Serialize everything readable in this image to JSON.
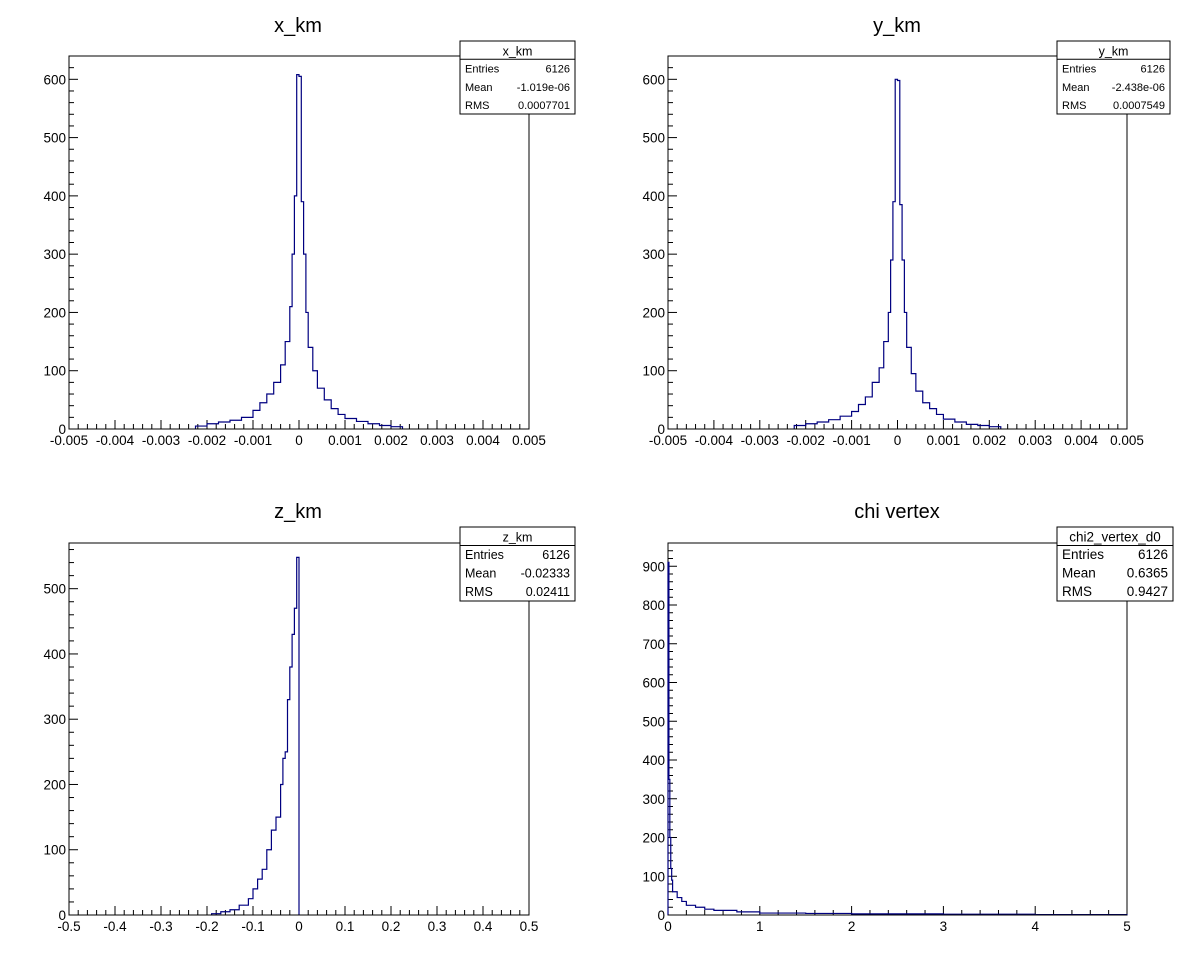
{
  "chart_data": [
    {
      "type": "histogram",
      "title": "x_km",
      "xlim": [
        -0.005,
        0.005
      ],
      "ylim": [
        0,
        640
      ],
      "x_ticks": [
        -0.005,
        -0.004,
        -0.003,
        -0.002,
        -0.001,
        0,
        0.001,
        0.002,
        0.003,
        0.004,
        0.005
      ],
      "x_tick_labels": [
        "-0.005",
        "-0.004",
        "-0.003",
        "-0.002",
        "-0.001",
        "0",
        "0.001",
        "0.002",
        "0.003",
        "0.004",
        "0.005"
      ],
      "y_ticks": [
        0,
        100,
        200,
        300,
        400,
        500,
        600
      ],
      "y_tick_labels": [
        "0",
        "100",
        "200",
        "300",
        "400",
        "500",
        "600"
      ],
      "stats": {
        "name": "x_km",
        "rows": [
          {
            "label": "Entries",
            "value": "6126"
          },
          {
            "label": "Mean",
            "value": "-1.019e-06"
          },
          {
            "label": "RMS",
            "value": "0.0007701"
          }
        ]
      },
      "bins": {
        "edges": [
          -0.00225,
          -0.002,
          -0.00175,
          -0.0015,
          -0.00125,
          -0.001,
          -0.00085,
          -0.0007,
          -0.00055,
          -0.0004,
          -0.0003,
          -0.0002,
          -0.00015,
          -0.0001,
          -5e-05,
          0,
          5e-05,
          0.0001,
          0.00015,
          0.0002,
          0.0003,
          0.0004,
          0.00055,
          0.0007,
          0.00085,
          0.001,
          0.00125,
          0.0015,
          0.00175,
          0.002,
          0.00225
        ],
        "counts": [
          5,
          9,
          12,
          15,
          20,
          32,
          45,
          60,
          80,
          110,
          150,
          210,
          300,
          400,
          608,
          605,
          390,
          300,
          200,
          140,
          100,
          70,
          50,
          35,
          25,
          18,
          13,
          9,
          6,
          4
        ]
      }
    },
    {
      "type": "histogram",
      "title": "y_km",
      "xlim": [
        -0.005,
        0.005
      ],
      "ylim": [
        0,
        640
      ],
      "x_ticks": [
        -0.005,
        -0.004,
        -0.003,
        -0.002,
        -0.001,
        0,
        0.001,
        0.002,
        0.003,
        0.004,
        0.005
      ],
      "x_tick_labels": [
        "-0.005",
        "-0.004",
        "-0.003",
        "-0.002",
        "-0.001",
        "0",
        "0.001",
        "0.002",
        "0.003",
        "0.004",
        "0.005"
      ],
      "y_ticks": [
        0,
        100,
        200,
        300,
        400,
        500,
        600
      ],
      "y_tick_labels": [
        "0",
        "100",
        "200",
        "300",
        "400",
        "500",
        "600"
      ],
      "stats": {
        "name": "y_km",
        "rows": [
          {
            "label": "Entries",
            "value": "6126"
          },
          {
            "label": "Mean",
            "value": "-2.438e-06"
          },
          {
            "label": "RMS",
            "value": "0.0007549"
          }
        ]
      },
      "bins": {
        "edges": [
          -0.00225,
          -0.002,
          -0.00175,
          -0.0015,
          -0.00125,
          -0.001,
          -0.00085,
          -0.0007,
          -0.00055,
          -0.0004,
          -0.0003,
          -0.0002,
          -0.00015,
          -0.0001,
          -5e-05,
          0,
          5e-05,
          0.0001,
          0.00015,
          0.0002,
          0.0003,
          0.0004,
          0.00055,
          0.0007,
          0.00085,
          0.001,
          0.00125,
          0.0015,
          0.00175,
          0.002,
          0.00225
        ],
        "counts": [
          6,
          9,
          12,
          16,
          22,
          30,
          42,
          55,
          80,
          105,
          150,
          200,
          290,
          390,
          600,
          598,
          385,
          290,
          200,
          140,
          95,
          65,
          45,
          35,
          25,
          17,
          12,
          8,
          6,
          4
        ]
      }
    },
    {
      "type": "histogram",
      "title": "z_km",
      "xlim": [
        -0.5,
        0.5
      ],
      "ylim": [
        0,
        570
      ],
      "x_ticks": [
        -0.5,
        -0.4,
        -0.3,
        -0.2,
        -0.1,
        0,
        0.1,
        0.2,
        0.3,
        0.4,
        0.5
      ],
      "x_tick_labels": [
        "-0.5",
        "-0.4",
        "-0.3",
        "-0.2",
        "-0.1",
        "0",
        "0.1",
        "0.2",
        "0.3",
        "0.4",
        "0.5"
      ],
      "y_ticks": [
        0,
        100,
        200,
        300,
        400,
        500
      ],
      "y_tick_labels": [
        "0",
        "100",
        "200",
        "300",
        "400",
        "500"
      ],
      "stats": {
        "name": "z_km",
        "rows": [
          {
            "label": "Entries",
            "value": "6126"
          },
          {
            "label": "Mean",
            "value": "-0.02333"
          },
          {
            "label": "RMS",
            "value": "0.02411"
          }
        ]
      },
      "bins": {
        "edges": [
          -0.19,
          -0.17,
          -0.15,
          -0.13,
          -0.11,
          -0.1,
          -0.09,
          -0.08,
          -0.07,
          -0.06,
          -0.05,
          -0.04,
          -0.035,
          -0.03,
          -0.025,
          -0.02,
          -0.015,
          -0.01,
          -0.005,
          0
        ],
        "counts": [
          2,
          5,
          8,
          15,
          25,
          40,
          55,
          70,
          100,
          130,
          150,
          200,
          240,
          250,
          330,
          380,
          430,
          470,
          548
        ]
      }
    },
    {
      "type": "histogram",
      "title": "chi vertex",
      "xlim": [
        0,
        5
      ],
      "ylim": [
        0,
        960
      ],
      "x_ticks": [
        0,
        1,
        2,
        3,
        4,
        5
      ],
      "x_tick_labels": [
        "0",
        "1",
        "2",
        "3",
        "4",
        "5"
      ],
      "y_ticks": [
        0,
        100,
        200,
        300,
        400,
        500,
        600,
        700,
        800,
        900
      ],
      "y_tick_labels": [
        "0",
        "100",
        "200",
        "300",
        "400",
        "500",
        "600",
        "700",
        "800",
        "900"
      ],
      "stats": {
        "name": "chi2_vertex_d0",
        "rows": [
          {
            "label": "Entries",
            "value": "6126"
          },
          {
            "label": "Mean",
            "value": "0.6365"
          },
          {
            "label": "RMS",
            "value": "0.9427"
          }
        ]
      },
      "bins": {
        "edges": [
          0,
          0.01,
          0.02,
          0.03,
          0.04,
          0.05,
          0.1,
          0.15,
          0.2,
          0.3,
          0.4,
          0.5,
          0.75,
          1,
          1.5,
          2,
          3,
          4,
          5
        ],
        "counts": [
          910,
          350,
          200,
          120,
          90,
          60,
          45,
          35,
          25,
          20,
          15,
          12,
          8,
          5,
          4,
          3,
          2,
          1
        ]
      }
    }
  ]
}
